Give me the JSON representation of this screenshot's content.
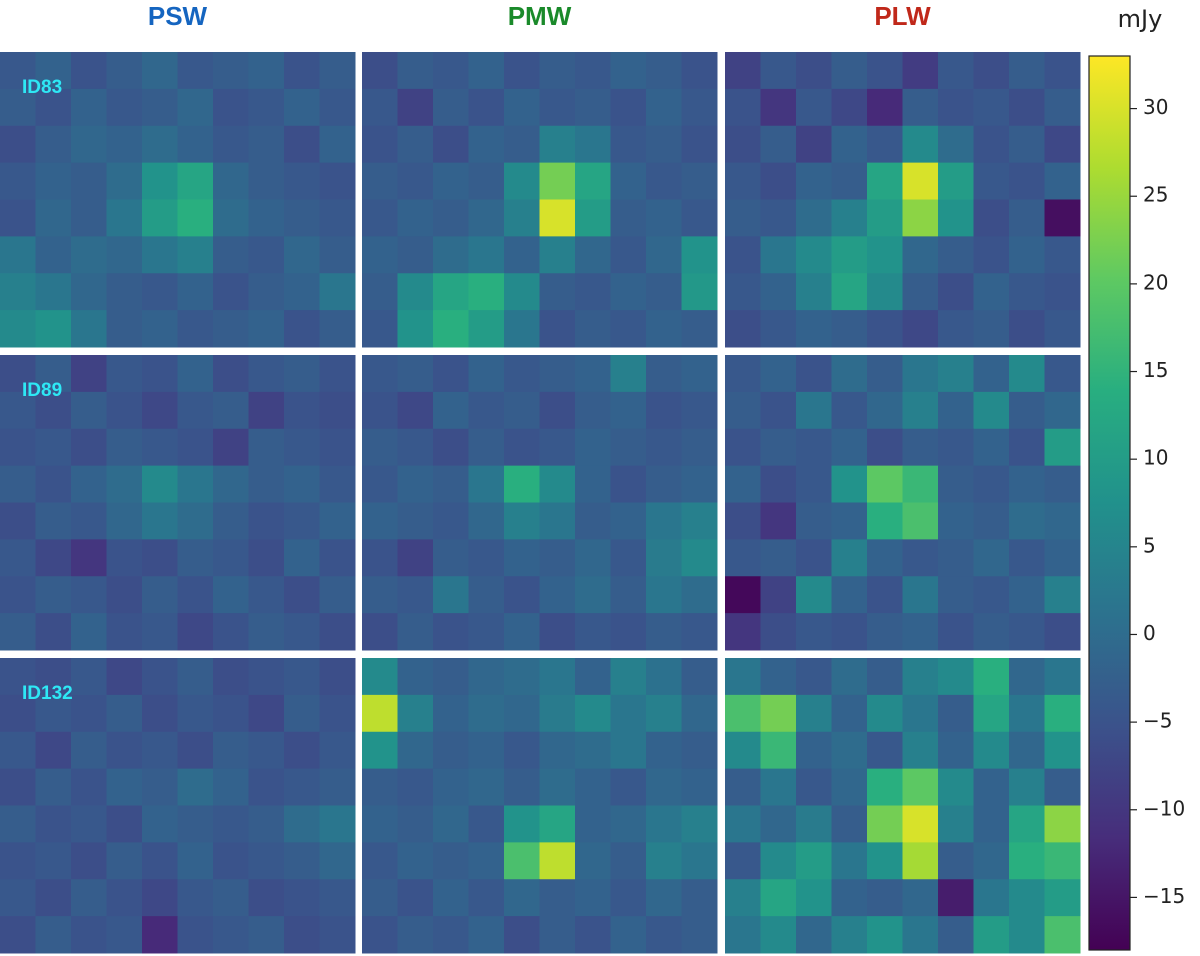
{
  "chart_data": {
    "type": "heatmap",
    "column_titles": [
      "PSW",
      "PMW",
      "PLW"
    ],
    "column_title_colors": [
      "#1565c0",
      "#1a8a2a",
      "#c0281a"
    ],
    "row_labels": [
      "ID83",
      "ID89",
      "ID132"
    ],
    "colormap": "viridis",
    "colorbar": {
      "label": "mJy",
      "lim": [
        -18,
        33
      ],
      "ticks": [
        30,
        25,
        20,
        15,
        10,
        5,
        0,
        {
          "value": -5,
          "label": "−5"
        },
        {
          "value": -10,
          "label": "−10"
        },
        {
          "value": -15,
          "label": "−15"
        }
      ]
    },
    "panels": [
      {
        "values": [
          [
            -4,
            -2,
            -5,
            -3,
            -1,
            -4,
            -3,
            -2,
            -5,
            -3
          ],
          [
            -3,
            -5,
            -2,
            -4,
            -3,
            -1,
            -5,
            -4,
            -2,
            -4
          ],
          [
            -6,
            -3,
            -1,
            -2,
            0,
            -2,
            -4,
            -3,
            -6,
            -2
          ],
          [
            -4,
            -2,
            -3,
            0,
            8,
            12,
            -1,
            -3,
            -4,
            -5
          ],
          [
            -5,
            -1,
            -3,
            2,
            10,
            14,
            0,
            -2,
            -3,
            -4
          ],
          [
            2,
            -2,
            0,
            -1,
            2,
            4,
            -3,
            -4,
            -1,
            -3
          ],
          [
            4,
            2,
            -1,
            -3,
            -4,
            -2,
            -5,
            -3,
            -2,
            2
          ],
          [
            6,
            8,
            2,
            -3,
            -2,
            -4,
            -3,
            -2,
            -5,
            -3
          ]
        ]
      },
      {
        "values": [
          [
            -6,
            -3,
            -4,
            -2,
            -5,
            -3,
            -4,
            -2,
            -3,
            -5
          ],
          [
            -4,
            -8,
            -3,
            -5,
            -2,
            -4,
            -3,
            -5,
            -2,
            -4
          ],
          [
            -5,
            -3,
            -6,
            -2,
            -3,
            4,
            2,
            -4,
            -3,
            -5
          ],
          [
            -3,
            -4,
            -2,
            -3,
            6,
            22,
            12,
            -2,
            -4,
            -3
          ],
          [
            -4,
            -2,
            -3,
            -1,
            4,
            30,
            10,
            -3,
            -2,
            -4
          ],
          [
            -2,
            -3,
            0,
            2,
            -2,
            4,
            -1,
            -4,
            -1,
            8
          ],
          [
            -3,
            6,
            12,
            14,
            6,
            -3,
            -4,
            -2,
            -3,
            9
          ],
          [
            -4,
            8,
            14,
            10,
            2,
            -5,
            -3,
            -4,
            -2,
            -3
          ]
        ]
      },
      {
        "values": [
          [
            -8,
            -4,
            -6,
            -3,
            -5,
            -9,
            -4,
            -6,
            -3,
            -5
          ],
          [
            -5,
            -10,
            -4,
            -7,
            -12,
            -3,
            -5,
            -4,
            -6,
            -3
          ],
          [
            -6,
            -3,
            -8,
            -2,
            -4,
            6,
            0,
            -5,
            -3,
            -7
          ],
          [
            -4,
            -6,
            -2,
            -3,
            12,
            30,
            10,
            -4,
            -5,
            -2
          ],
          [
            -3,
            -4,
            0,
            4,
            10,
            24,
            8,
            -6,
            -3,
            -16
          ],
          [
            -5,
            2,
            6,
            10,
            8,
            -1,
            -3,
            -5,
            -2,
            -4
          ],
          [
            -4,
            -2,
            4,
            12,
            6,
            -3,
            -6,
            -2,
            -4,
            -5
          ],
          [
            -6,
            -4,
            -2,
            -3,
            -5,
            -7,
            -4,
            -3,
            -6,
            -4
          ]
        ]
      },
      {
        "values": [
          [
            -6,
            -3,
            -8,
            -4,
            -5,
            -2,
            -6,
            -4,
            -3,
            -5
          ],
          [
            -4,
            -6,
            -3,
            -5,
            -7,
            -4,
            -3,
            -8,
            -5,
            -6
          ],
          [
            -5,
            -4,
            -6,
            -3,
            -4,
            -5,
            -8,
            -3,
            -4,
            -5
          ],
          [
            -3,
            -5,
            -2,
            0,
            6,
            2,
            -1,
            -3,
            -2,
            -4
          ],
          [
            -6,
            -3,
            -4,
            -1,
            2,
            0,
            -3,
            -5,
            -4,
            -2
          ],
          [
            -4,
            -7,
            -10,
            -5,
            -6,
            -3,
            -4,
            -6,
            -2,
            -5
          ],
          [
            -5,
            -3,
            -4,
            -6,
            -3,
            -5,
            -2,
            -4,
            -6,
            -3
          ],
          [
            -3,
            -6,
            -2,
            -5,
            -4,
            -7,
            -5,
            -3,
            -4,
            -6
          ]
        ]
      },
      {
        "values": [
          [
            -4,
            -3,
            -5,
            -2,
            -4,
            -3,
            -2,
            4,
            -3,
            -2
          ],
          [
            -5,
            -7,
            -2,
            -4,
            -3,
            -6,
            -3,
            -2,
            -5,
            -4
          ],
          [
            -3,
            -4,
            -6,
            -3,
            -5,
            -4,
            -2,
            -3,
            -4,
            -3
          ],
          [
            -4,
            -2,
            -3,
            2,
            14,
            6,
            -2,
            -5,
            -3,
            -2
          ],
          [
            -2,
            -3,
            -4,
            -1,
            4,
            2,
            -3,
            -2,
            2,
            4
          ],
          [
            -5,
            -8,
            -3,
            -4,
            -2,
            -3,
            -1,
            -4,
            3,
            6
          ],
          [
            -3,
            -4,
            2,
            -3,
            -5,
            -2,
            0,
            -3,
            2,
            0
          ],
          [
            -6,
            -3,
            -5,
            -4,
            -2,
            -6,
            -4,
            -5,
            -3,
            -4
          ]
        ]
      },
      {
        "values": [
          [
            -4,
            -2,
            -5,
            0,
            -3,
            2,
            4,
            -2,
            6,
            -4
          ],
          [
            -3,
            -5,
            2,
            -4,
            -1,
            4,
            -2,
            6,
            -3,
            -1
          ],
          [
            -5,
            -3,
            -4,
            -2,
            -6,
            -3,
            -4,
            -2,
            -5,
            10
          ],
          [
            -2,
            -6,
            -4,
            8,
            20,
            16,
            -3,
            -4,
            -2,
            -3
          ],
          [
            -6,
            -10,
            -3,
            -2,
            14,
            18,
            -2,
            -3,
            0,
            -1
          ],
          [
            -4,
            -3,
            -5,
            4,
            -2,
            -4,
            -3,
            -1,
            -4,
            -2
          ],
          [
            -17,
            -8,
            6,
            -2,
            -5,
            2,
            -3,
            -4,
            -2,
            4
          ],
          [
            -10,
            -6,
            -4,
            -5,
            -3,
            -2,
            -5,
            -3,
            -4,
            -6
          ]
        ]
      },
      {
        "values": [
          [
            -5,
            -6,
            -4,
            -7,
            -5,
            -3,
            -6,
            -5,
            -4,
            -6
          ],
          [
            -6,
            -4,
            -5,
            -3,
            -6,
            -4,
            -5,
            -7,
            -3,
            -5
          ],
          [
            -4,
            -7,
            -3,
            -5,
            -4,
            -6,
            -3,
            -4,
            -6,
            -4
          ],
          [
            -6,
            -3,
            -5,
            -2,
            -3,
            0,
            -2,
            -5,
            -4,
            -3
          ],
          [
            -3,
            -5,
            -4,
            -6,
            -2,
            -3,
            -4,
            -3,
            0,
            2
          ],
          [
            -5,
            -4,
            -6,
            -3,
            -5,
            -2,
            -5,
            -4,
            -3,
            -1
          ],
          [
            -4,
            -6,
            -3,
            -5,
            -7,
            -4,
            -3,
            -6,
            -5,
            -4
          ],
          [
            -6,
            -3,
            -5,
            -4,
            -12,
            -5,
            -4,
            -3,
            -6,
            -5
          ]
        ]
      },
      {
        "values": [
          [
            6,
            -2,
            -3,
            -1,
            0,
            2,
            -2,
            4,
            1,
            -3
          ],
          [
            28,
            4,
            -2,
            0,
            -1,
            3,
            6,
            2,
            4,
            -1
          ],
          [
            8,
            -1,
            -3,
            -2,
            -4,
            -1,
            0,
            2,
            -2,
            -3
          ],
          [
            -3,
            -4,
            -2,
            -1,
            -3,
            0,
            -2,
            -4,
            -1,
            -2
          ],
          [
            -2,
            -3,
            -1,
            -4,
            8,
            12,
            -2,
            -1,
            2,
            4
          ],
          [
            -4,
            -2,
            -3,
            -2,
            18,
            28,
            -1,
            -3,
            4,
            2
          ],
          [
            -3,
            -5,
            -2,
            -4,
            -1,
            -3,
            -2,
            -4,
            -1,
            -3
          ],
          [
            -5,
            -3,
            -4,
            -2,
            -6,
            -3,
            -5,
            -2,
            -4,
            -3
          ]
        ]
      },
      {
        "values": [
          [
            2,
            -2,
            -4,
            0,
            -3,
            4,
            6,
            14,
            -1,
            2
          ],
          [
            18,
            22,
            4,
            -2,
            6,
            2,
            -3,
            12,
            2,
            14
          ],
          [
            6,
            16,
            -2,
            0,
            -4,
            4,
            -2,
            6,
            -1,
            8
          ],
          [
            -3,
            2,
            -4,
            -1,
            14,
            20,
            6,
            -2,
            4,
            -3
          ],
          [
            2,
            -1,
            3,
            -3,
            22,
            30,
            4,
            -2,
            12,
            24
          ],
          [
            -4,
            6,
            10,
            2,
            8,
            26,
            -3,
            -1,
            14,
            16
          ],
          [
            4,
            12,
            8,
            -2,
            -3,
            -1,
            -14,
            2,
            6,
            10
          ],
          [
            2,
            6,
            -1,
            4,
            8,
            2,
            -3,
            10,
            6,
            18
          ]
        ]
      }
    ]
  }
}
